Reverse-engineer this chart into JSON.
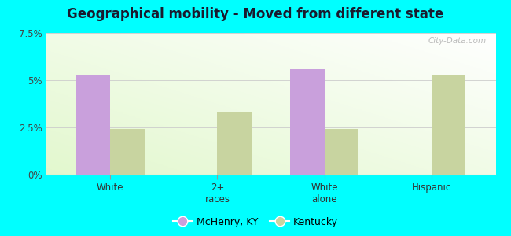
{
  "title": "Geographical mobility - Moved from different state",
  "categories": [
    "White",
    "2+\nraces",
    "White\nalone",
    "Hispanic"
  ],
  "mchenry_values": [
    5.3,
    0,
    5.6,
    0
  ],
  "kentucky_values": [
    2.4,
    3.3,
    2.4,
    5.3
  ],
  "mchenry_color": "#c9a0dc",
  "kentucky_color": "#c8d4a0",
  "ylim": [
    0,
    7.5
  ],
  "yticks": [
    0,
    2.5,
    5.0,
    7.5
  ],
  "ytick_labels": [
    "0%",
    "2.5%",
    "5%",
    "7.5%"
  ],
  "bar_width": 0.32,
  "outer_background": "#00ffff",
  "title_fontsize": 12,
  "legend_mchenry": "McHenry, KY",
  "legend_kentucky": "Kentucky",
  "watermark": "City-Data.com"
}
